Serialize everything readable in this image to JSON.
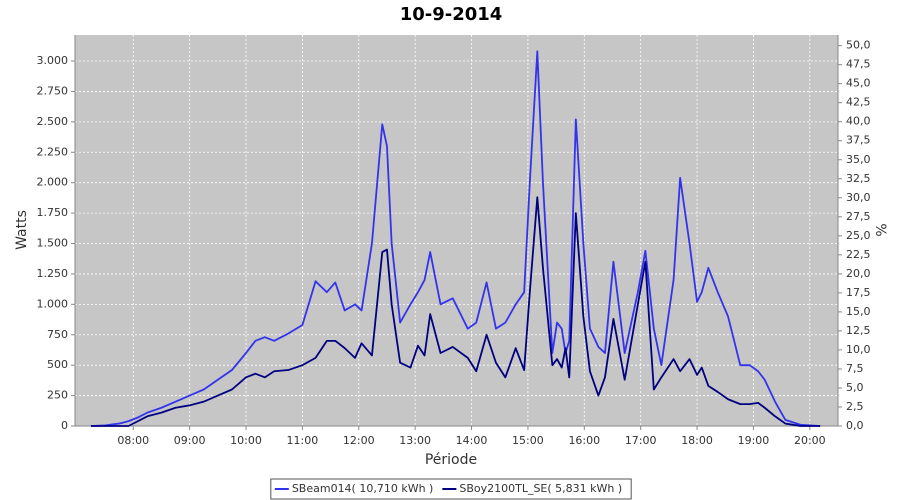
{
  "chart_data": {
    "type": "line",
    "title": "10-9-2014",
    "x_label": "Période",
    "y_label": "Watts",
    "y2_label": "%",
    "x": [
      "07:15",
      "07:30",
      "07:45",
      "07:55",
      "08:05",
      "08:15",
      "08:30",
      "08:45",
      "09:00",
      "09:15",
      "09:30",
      "09:45",
      "10:00",
      "10:10",
      "10:20",
      "10:30",
      "10:45",
      "11:00",
      "11:14",
      "11:26",
      "11:35",
      "11:45",
      "11:56",
      "12:03",
      "12:14",
      "12:25",
      "12:30",
      "12:35",
      "12:44",
      "12:55",
      "13:03",
      "13:10",
      "13:16",
      "13:27",
      "13:40",
      "13:56",
      "14:05",
      "14:16",
      "14:26",
      "14:36",
      "14:47",
      "14:56",
      "15:02",
      "15:10",
      "15:16",
      "15:26",
      "15:31",
      "15:36",
      "15:40",
      "15:44",
      "15:51",
      "15:59",
      "16:06",
      "16:15",
      "16:22",
      "16:31",
      "16:43",
      "16:57",
      "17:05",
      "17:14",
      "17:22",
      "17:35",
      "17:42",
      "17:52",
      "18:00",
      "18:05",
      "18:12",
      "18:22",
      "18:33",
      "18:46",
      "18:56",
      "19:05",
      "19:12",
      "19:23",
      "19:34",
      "19:50",
      "20:11"
    ],
    "series": [
      {
        "name": "SBeam014( 10,710 kWh )",
        "color": "#3333ee",
        "values": [
          0,
          5,
          20,
          40,
          70,
          110,
          150,
          200,
          250,
          300,
          380,
          460,
          600,
          700,
          730,
          700,
          760,
          830,
          1190,
          1100,
          1180,
          950,
          1000,
          950,
          1500,
          2480,
          2300,
          1500,
          850,
          1000,
          1100,
          1200,
          1430,
          1000,
          1050,
          800,
          850,
          1180,
          800,
          850,
          1000,
          1100,
          2000,
          3080,
          2000,
          600,
          850,
          800,
          600,
          700,
          2520,
          1500,
          800,
          650,
          600,
          1350,
          600,
          1100,
          1440,
          800,
          500,
          1200,
          2040,
          1500,
          1020,
          1100,
          1300,
          1100,
          900,
          500,
          500,
          450,
          380,
          200,
          50,
          10,
          0
        ]
      },
      {
        "name": "SBoy2100TL_SE( 5,831 kWh )",
        "color": "#000080",
        "values": [
          0,
          0,
          0,
          0,
          40,
          80,
          110,
          150,
          170,
          200,
          250,
          300,
          400,
          430,
          400,
          450,
          460,
          500,
          560,
          700,
          700,
          640,
          560,
          680,
          580,
          1430,
          1450,
          1000,
          520,
          480,
          660,
          580,
          920,
          600,
          650,
          560,
          450,
          750,
          520,
          400,
          640,
          460,
          1100,
          1880,
          1300,
          500,
          550,
          480,
          640,
          400,
          1750,
          900,
          450,
          250,
          400,
          880,
          380,
          1000,
          1350,
          300,
          400,
          550,
          450,
          550,
          420,
          480,
          330,
          280,
          220,
          180,
          180,
          190,
          150,
          80,
          20,
          0,
          0
        ]
      }
    ],
    "xlim": [
      "06:58",
      "20:30"
    ],
    "xticks": [
      "08:00",
      "09:00",
      "10:00",
      "11:00",
      "12:00",
      "13:00",
      "14:00",
      "15:00",
      "16:00",
      "17:00",
      "18:00",
      "19:00",
      "20:00"
    ],
    "ylim": [
      0,
      3214
    ],
    "yticks": [
      0,
      250,
      500,
      750,
      {
        "value": 1000,
        "label": "1.000"
      },
      {
        "value": 1250,
        "label": "1.250"
      },
      {
        "value": 1500,
        "label": "1.500"
      },
      {
        "value": 1750,
        "label": "1.750"
      },
      {
        "value": 2000,
        "label": "2.000"
      },
      {
        "value": 2250,
        "label": "2.250"
      },
      {
        "value": 2500,
        "label": "2.500"
      },
      {
        "value": 2750,
        "label": "2.750"
      },
      {
        "value": 3000,
        "label": "3.000"
      }
    ],
    "y2lim": [
      0,
      51.4
    ],
    "y2ticks": [
      {
        "value": 0,
        "label": "0,0"
      },
      {
        "value": 2.5,
        "label": "2,5"
      },
      {
        "value": 5,
        "label": "5,0"
      },
      {
        "value": 7.5,
        "label": "7,5"
      },
      {
        "value": 10,
        "label": "10,0"
      },
      {
        "value": 12.5,
        "label": "12,5"
      },
      {
        "value": 15,
        "label": "15,0"
      },
      {
        "value": 17.5,
        "label": "17,5"
      },
      {
        "value": 20,
        "label": "20,0"
      },
      {
        "value": 22.5,
        "label": "22,5"
      },
      {
        "value": 25,
        "label": "25,0"
      },
      {
        "value": 27.5,
        "label": "27,5"
      },
      {
        "value": 30,
        "label": "30,0"
      },
      {
        "value": 32.5,
        "label": "32,5"
      },
      {
        "value": 35,
        "label": "35,0"
      },
      {
        "value": 37.5,
        "label": "37,5"
      },
      {
        "value": 40,
        "label": "40,0"
      },
      {
        "value": 42.5,
        "label": "42,5"
      },
      {
        "value": 45,
        "label": "45,0"
      },
      {
        "value": 47.5,
        "label": "47,5"
      },
      {
        "value": 50,
        "label": "50,0"
      }
    ],
    "grid": true,
    "legend": "bottom"
  }
}
